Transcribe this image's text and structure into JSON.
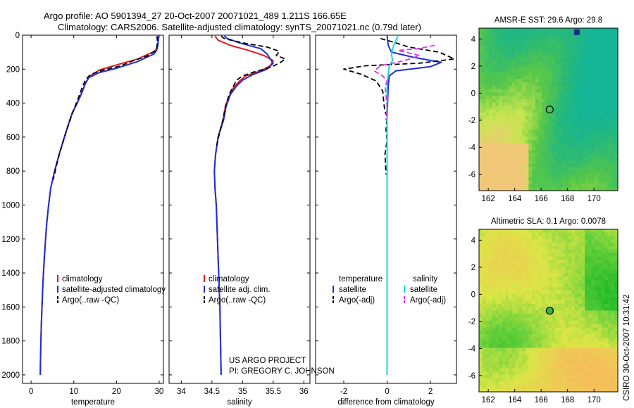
{
  "title_line1": "Argo profile: AO 5901394_27 20-Oct-2007 20071021_489 1.211S 166.65E",
  "title_line2": "Climatology: CARS2006. Satellite-adjusted climatology: synTS_20071021.nc (0.79d later)",
  "credit_line1": "US ARGO PROJECT",
  "credit_line2": "PI: GREGORY C. JOHNSON",
  "timestamp": "CSIRO 30-Oct-2007 10:31:42",
  "colors": {
    "climatology": "#e41a1c",
    "satellite": "#1f2fd6",
    "argo": "#000000",
    "sat_salinity": "#19d8e0",
    "argo_salinity": "#e62ee6"
  },
  "chart_data": [
    {
      "type": "line",
      "xlabel": "temperature",
      "ylim": [
        2050,
        0
      ],
      "y_ticks": [
        0,
        200,
        400,
        600,
        800,
        1000,
        1200,
        1400,
        1600,
        1800,
        2000
      ],
      "xlim": [
        -2,
        31
      ],
      "x_ticks": [
        0,
        10,
        20,
        30
      ],
      "legend": [
        "climatology",
        "satellite-adjusted climatology",
        "Argo(..raw -QC)"
      ],
      "series": [
        {
          "name": "climatology",
          "color_key": "climatology",
          "dash": false,
          "points": [
            [
              29.9,
              5
            ],
            [
              29.8,
              30
            ],
            [
              29.6,
              60
            ],
            [
              29.3,
              85
            ],
            [
              28.5,
              100
            ],
            [
              25,
              140
            ],
            [
              20,
              175
            ],
            [
              16,
              205
            ],
            [
              13.8,
              240
            ],
            [
              12.8,
              280
            ],
            [
              12,
              330
            ],
            [
              10.8,
              400
            ],
            [
              9.6,
              460
            ],
            [
              8.8,
              520
            ],
            [
              7.8,
              600
            ],
            [
              6.6,
              700
            ],
            [
              5.5,
              800
            ],
            [
              4.6,
              900
            ],
            [
              4.1,
              1000
            ],
            [
              3.7,
              1100
            ],
            [
              3.4,
              1200
            ],
            [
              3.1,
              1300
            ],
            [
              2.9,
              1400
            ],
            [
              2.7,
              1500
            ],
            [
              2.55,
              1600
            ],
            [
              2.4,
              1700
            ],
            [
              2.3,
              1800
            ],
            [
              2.2,
              1900
            ],
            [
              2.15,
              2000
            ]
          ]
        },
        {
          "name": "satellite-adjusted climatology",
          "color_key": "satellite",
          "dash": false,
          "points": [
            [
              29.9,
              5
            ],
            [
              29.8,
              30
            ],
            [
              29.7,
              60
            ],
            [
              29.4,
              90
            ],
            [
              28.8,
              110
            ],
            [
              25,
              155
            ],
            [
              20,
              195
            ],
            [
              16,
              220
            ],
            [
              13.5,
              250
            ],
            [
              12.6,
              290
            ],
            [
              11.9,
              340
            ],
            [
              10.8,
              400
            ],
            [
              9.6,
              460
            ],
            [
              8.8,
              520
            ],
            [
              7.8,
              600
            ],
            [
              6.6,
              700
            ],
            [
              5.5,
              800
            ],
            [
              4.6,
              900
            ],
            [
              4.1,
              1000
            ],
            [
              3.7,
              1100
            ],
            [
              3.4,
              1200
            ],
            [
              3.15,
              1300
            ],
            [
              2.9,
              1400
            ],
            [
              2.7,
              1500
            ],
            [
              2.55,
              1600
            ],
            [
              2.4,
              1700
            ],
            [
              2.3,
              1800
            ],
            [
              2.2,
              1900
            ],
            [
              2.15,
              2000
            ]
          ]
        },
        {
          "name": "Argo(..raw -QC)",
          "color_key": "argo",
          "dash": true,
          "points": [
            [
              29.5,
              5
            ],
            [
              29.6,
              40
            ],
            [
              29.4,
              80
            ],
            [
              29.0,
              95
            ],
            [
              27,
              125
            ],
            [
              24,
              150
            ],
            [
              21,
              180
            ],
            [
              17,
              205
            ],
            [
              14,
              230
            ],
            [
              12.8,
              260
            ],
            [
              12.1,
              300
            ],
            [
              11.2,
              360
            ],
            [
              10.3,
              420
            ],
            [
              9.4,
              480
            ],
            [
              8.6,
              540
            ],
            [
              7.7,
              610
            ],
            [
              6.4,
              720
            ],
            [
              5.2,
              850
            ]
          ]
        }
      ]
    },
    {
      "type": "line",
      "xlabel": "salinity",
      "ylim": [
        2050,
        0
      ],
      "xlim": [
        33.8,
        36.1
      ],
      "x_ticks": [
        34,
        34.5,
        35,
        35.5,
        36
      ],
      "legend": [
        "climatology",
        "satellite adj. clim.",
        "Argo(..raw -QC)"
      ],
      "series": [
        {
          "name": "climatology",
          "color_key": "climatology",
          "dash": false,
          "points": [
            [
              34.55,
              5
            ],
            [
              34.6,
              30
            ],
            [
              34.8,
              60
            ],
            [
              35.1,
              90
            ],
            [
              35.35,
              120
            ],
            [
              35.5,
              150
            ],
            [
              35.45,
              180
            ],
            [
              35.3,
              210
            ],
            [
              35.05,
              240
            ],
            [
              34.95,
              270
            ],
            [
              34.85,
              310
            ],
            [
              34.78,
              360
            ],
            [
              34.72,
              420
            ],
            [
              34.68,
              500
            ],
            [
              34.6,
              600
            ],
            [
              34.56,
              700
            ],
            [
              34.54,
              800
            ],
            [
              34.55,
              900
            ],
            [
              34.57,
              1000
            ],
            [
              34.59,
              1200
            ],
            [
              34.61,
              1400
            ],
            [
              34.63,
              1600
            ],
            [
              34.64,
              1800
            ],
            [
              34.65,
              2000
            ]
          ]
        },
        {
          "name": "satellite adj. clim.",
          "color_key": "satellite",
          "dash": false,
          "points": [
            [
              34.7,
              5
            ],
            [
              34.75,
              20
            ],
            [
              34.95,
              45
            ],
            [
              35.3,
              80
            ],
            [
              35.4,
              110
            ],
            [
              35.45,
              140
            ],
            [
              35.5,
              165
            ],
            [
              35.4,
              200
            ],
            [
              35.15,
              235
            ],
            [
              35.0,
              265
            ],
            [
              34.9,
              300
            ],
            [
              34.8,
              350
            ],
            [
              34.73,
              420
            ],
            [
              34.69,
              500
            ],
            [
              34.6,
              600
            ],
            [
              34.56,
              700
            ],
            [
              34.54,
              800
            ],
            [
              34.55,
              900
            ],
            [
              34.57,
              1000
            ],
            [
              34.59,
              1200
            ],
            [
              34.61,
              1400
            ],
            [
              34.63,
              1600
            ],
            [
              34.64,
              1800
            ],
            [
              34.65,
              2000
            ]
          ]
        },
        {
          "name": "Argo(..raw -QC)",
          "color_key": "argo",
          "dash": true,
          "points": [
            [
              34.65,
              5
            ],
            [
              34.7,
              20
            ],
            [
              35.0,
              45
            ],
            [
              35.4,
              70
            ],
            [
              35.6,
              95
            ],
            [
              35.55,
              120
            ],
            [
              35.7,
              140
            ],
            [
              35.6,
              165
            ],
            [
              35.45,
              190
            ],
            [
              35.2,
              215
            ],
            [
              35.0,
              240
            ],
            [
              34.9,
              265
            ],
            [
              34.85,
              300
            ],
            [
              34.78,
              350
            ],
            [
              34.72,
              420
            ],
            [
              34.68,
              500
            ],
            [
              34.62,
              580
            ],
            [
              34.58,
              650
            ]
          ]
        }
      ]
    },
    {
      "type": "line",
      "xlabel": "difference from climatology",
      "ylim": [
        2050,
        0
      ],
      "xlim": [
        -3.3,
        3.2
      ],
      "x_ticks": [
        -2,
        0,
        2
      ],
      "legend_titles": [
        "temperature",
        "salinity"
      ],
      "legend": [
        "satellite",
        "Argo(-adj)",
        "satellite",
        "Argo(-adj)"
      ],
      "series": [
        {
          "name": "satellite",
          "group": "temperature",
          "color_key": "satellite",
          "dash": false,
          "points": [
            [
              0.0,
              5
            ],
            [
              0.05,
              60
            ],
            [
              0.2,
              100
            ],
            [
              1.2,
              130
            ],
            [
              2.5,
              160
            ],
            [
              2.0,
              185
            ],
            [
              0.4,
              210
            ],
            [
              0.1,
              240
            ],
            [
              0.05,
              300
            ],
            [
              0.02,
              400
            ],
            [
              0.0,
              500
            ],
            [
              0.0,
              700
            ],
            [
              0.0,
              1000
            ],
            [
              0.0,
              1400
            ],
            [
              0.0,
              2000
            ]
          ]
        },
        {
          "name": "Argo(-adj)",
          "group": "temperature",
          "color_key": "argo",
          "dash": true,
          "points": [
            [
              -0.3,
              20
            ],
            [
              0.4,
              45
            ],
            [
              1.0,
              70
            ],
            [
              2.4,
              100
            ],
            [
              3.1,
              140
            ],
            [
              1.5,
              165
            ],
            [
              -1.0,
              180
            ],
            [
              -2.0,
              200
            ],
            [
              -1.2,
              230
            ],
            [
              -0.5,
              270
            ],
            [
              -0.2,
              330
            ],
            [
              -0.15,
              400
            ],
            [
              -0.1,
              450
            ],
            [
              0.0,
              480
            ],
            [
              -0.05,
              560
            ],
            [
              0.0,
              620
            ],
            [
              -0.1,
              700
            ],
            [
              -0.05,
              820
            ]
          ]
        },
        {
          "name": "satellite",
          "group": "salinity",
          "color_key": "sat_salinity",
          "dash": false,
          "points": [
            [
              0.5,
              5
            ],
            [
              0.3,
              60
            ],
            [
              0.2,
              110
            ],
            [
              0.25,
              150
            ],
            [
              0.1,
              180
            ],
            [
              0.05,
              230
            ],
            [
              0.0,
              280
            ],
            [
              0.0,
              400
            ],
            [
              0.0,
              700
            ],
            [
              0.0,
              1000
            ],
            [
              0.0,
              1400
            ],
            [
              0.0,
              2000
            ]
          ]
        },
        {
          "name": "Argo(-adj)",
          "group": "salinity",
          "color_key": "argo_salinity",
          "dash": true,
          "points": [
            [
              2.2,
              60
            ],
            [
              1.4,
              80
            ],
            [
              0.5,
              90
            ],
            [
              1.5,
              120
            ],
            [
              0.8,
              150
            ],
            [
              -0.3,
              180
            ],
            [
              -0.6,
              210
            ],
            [
              -0.2,
              240
            ],
            [
              0.0,
              270
            ],
            [
              -0.1,
              300
            ],
            [
              -0.05,
              360
            ],
            [
              0.0,
              420
            ],
            [
              -0.05,
              500
            ]
          ]
        }
      ]
    },
    {
      "type": "heatmap",
      "title": "AMSR-E SST: 29.6 Argo: 29.8",
      "xlim": [
        161.3,
        171.8
      ],
      "ylim": [
        -7.2,
        4.8
      ],
      "x_ticks": [
        162,
        164,
        166,
        168,
        170
      ],
      "y_ticks": [
        4,
        2,
        0,
        -2,
        -4,
        -6
      ],
      "argo_position": [
        166.65,
        -1.211
      ]
    },
    {
      "type": "heatmap",
      "title": "Altimetric SLA: 0.1 Argo: 0.0078",
      "xlim": [
        161.3,
        171.8
      ],
      "ylim": [
        -7.2,
        4.8
      ],
      "x_ticks": [
        162,
        164,
        166,
        168,
        170
      ],
      "y_ticks": [
        4,
        2,
        0,
        -2,
        -4,
        -6
      ],
      "argo_position": [
        166.65,
        -1.211
      ]
    }
  ]
}
